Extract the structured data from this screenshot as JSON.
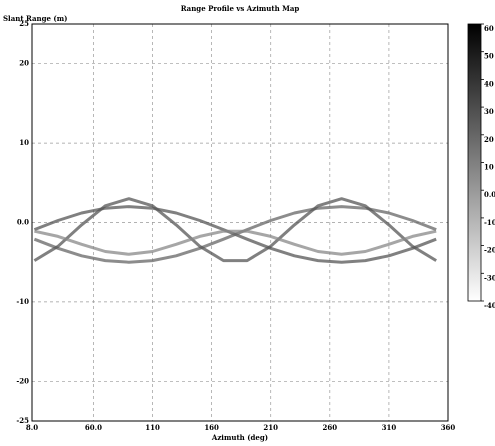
{
  "chart_data": {
    "type": "line",
    "title": "Range Profile vs Azimuth Map",
    "ylabel": "Slant Range (m)",
    "xlabel": "Azimuth (deg)",
    "x": [
      10,
      30,
      50,
      70,
      90,
      110,
      130,
      150,
      170,
      190,
      210,
      230,
      250,
      270,
      290,
      310,
      330,
      350
    ],
    "series": [
      {
        "color": "#555555",
        "values": [
          -0.9,
          0.25,
          1.2,
          1.8,
          2.0,
          1.8,
          1.2,
          0.25,
          -0.9,
          -2.1,
          -3.25,
          -4.2,
          -4.8,
          -5.0,
          -4.8,
          -4.2,
          -3.25,
          -2.1
        ]
      },
      {
        "color": "#666666",
        "values": [
          -2.1,
          -3.25,
          -4.2,
          -4.8,
          -5.0,
          -4.8,
          -4.2,
          -3.25,
          -2.1,
          -0.9,
          0.25,
          1.2,
          1.8,
          2.0,
          1.8,
          1.2,
          0.25,
          -0.9
        ]
      },
      {
        "color": "#555555",
        "values": [
          -4.8,
          -3.0,
          -0.3,
          2.1,
          3.0,
          2.1,
          -0.3,
          -3.0,
          -4.8,
          -4.8,
          -3.0,
          -0.3,
          2.1,
          3.0,
          2.1,
          -0.3,
          -3.0,
          -4.8
        ]
      },
      {
        "color": "#888888",
        "values": [
          -1.1,
          -1.75,
          -2.75,
          -3.65,
          -4.0,
          -3.65,
          -2.75,
          -1.75,
          -1.1,
          -1.1,
          -1.75,
          -2.75,
          -3.65,
          -4.0,
          -3.65,
          -2.75,
          -1.75,
          -1.1
        ]
      }
    ],
    "xlim": [
      8,
      360
    ],
    "xticks": [
      {
        "value": 8,
        "label": "8.0"
      },
      {
        "value": 60,
        "label": "60.0"
      },
      110,
      160,
      210,
      260,
      310,
      360
    ],
    "ylim": [
      -25,
      25
    ],
    "yticks": [
      25,
      20,
      10,
      {
        "value": 0,
        "label": "0.0"
      },
      -10,
      -20,
      -25
    ],
    "grid": true,
    "colorbar": {
      "zlim": [
        -40,
        60
      ],
      "colors": [
        "#ffffff",
        "#000000"
      ],
      "zticks": [
        60,
        50,
        40,
        30,
        20,
        10,
        {
          "value": 0,
          "label": "0.0"
        },
        -10,
        -20,
        -30,
        -40
      ]
    }
  }
}
